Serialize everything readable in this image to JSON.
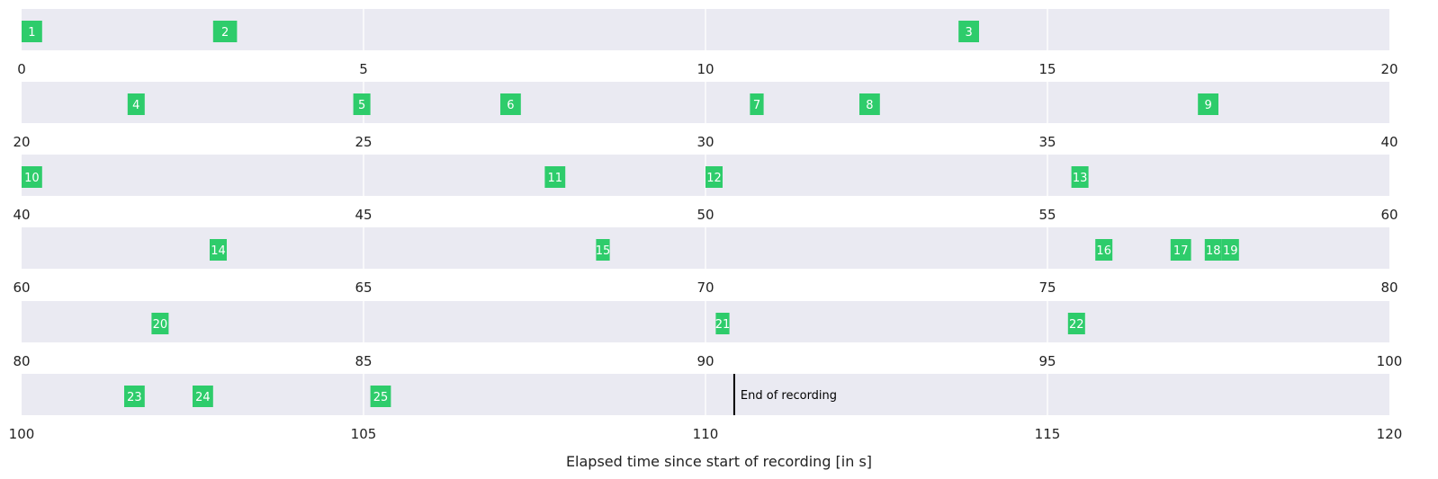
{
  "chart_data": {
    "type": "timeline",
    "xlabel": "Elapsed time since start of recording [in s]",
    "row_span_seconds": 20,
    "xlim": [
      0,
      120
    ],
    "rows": [
      {
        "range": [
          0,
          20
        ],
        "ticks": [
          "0",
          "5",
          "10",
          "15",
          "20"
        ]
      },
      {
        "range": [
          20,
          40
        ],
        "ticks": [
          "20",
          "25",
          "30",
          "35",
          "40"
        ]
      },
      {
        "range": [
          40,
          60
        ],
        "ticks": [
          "40",
          "45",
          "50",
          "55",
          "60"
        ]
      },
      {
        "range": [
          60,
          80
        ],
        "ticks": [
          "60",
          "65",
          "70",
          "75",
          "80"
        ]
      },
      {
        "range": [
          80,
          100
        ],
        "ticks": [
          "80",
          "85",
          "90",
          "95",
          "100"
        ]
      },
      {
        "range": [
          100,
          120
        ],
        "ticks": [
          "100",
          "105",
          "110",
          "115",
          "120"
        ]
      }
    ],
    "events": [
      {
        "label": "1",
        "start": 0.0,
        "end": 0.3
      },
      {
        "label": "2",
        "start": 2.8,
        "end": 3.15
      },
      {
        "label": "3",
        "start": 13.7,
        "end": 14.0
      },
      {
        "label": "4",
        "start": 21.55,
        "end": 21.8
      },
      {
        "label": "5",
        "start": 24.85,
        "end": 25.1
      },
      {
        "label": "6",
        "start": 27.0,
        "end": 27.3
      },
      {
        "label": "7",
        "start": 30.65,
        "end": 30.85
      },
      {
        "label": "8",
        "start": 32.25,
        "end": 32.55
      },
      {
        "label": "9",
        "start": 37.2,
        "end": 37.5
      },
      {
        "label": "10",
        "start": 40.0,
        "end": 40.3
      },
      {
        "label": "11",
        "start": 47.65,
        "end": 47.95
      },
      {
        "label": "12",
        "start": 50.0,
        "end": 50.25
      },
      {
        "label": "13",
        "start": 55.35,
        "end": 55.6
      },
      {
        "label": "14",
        "start": 62.75,
        "end": 63.0
      },
      {
        "label": "15",
        "start": 68.4,
        "end": 68.6
      },
      {
        "label": "16",
        "start": 75.7,
        "end": 75.95
      },
      {
        "label": "17",
        "start": 76.8,
        "end": 77.1
      },
      {
        "label": "18",
        "start": 77.3,
        "end": 77.55
      },
      {
        "label": "19",
        "start": 77.55,
        "end": 77.8
      },
      {
        "label": "20",
        "start": 81.9,
        "end": 82.15
      },
      {
        "label": "21",
        "start": 90.15,
        "end": 90.35
      },
      {
        "label": "22",
        "start": 95.3,
        "end": 95.55
      },
      {
        "label": "23",
        "start": 101.5,
        "end": 101.8
      },
      {
        "label": "24",
        "start": 102.5,
        "end": 102.8
      },
      {
        "label": "25",
        "start": 105.1,
        "end": 105.4
      }
    ],
    "end_marker": {
      "time": 110.42,
      "label": "End of recording"
    },
    "colors": {
      "band": "#eaeaf2",
      "event": "#2ecc6b",
      "grid": "#ffffff",
      "marker": "#000000"
    },
    "grid": true
  }
}
